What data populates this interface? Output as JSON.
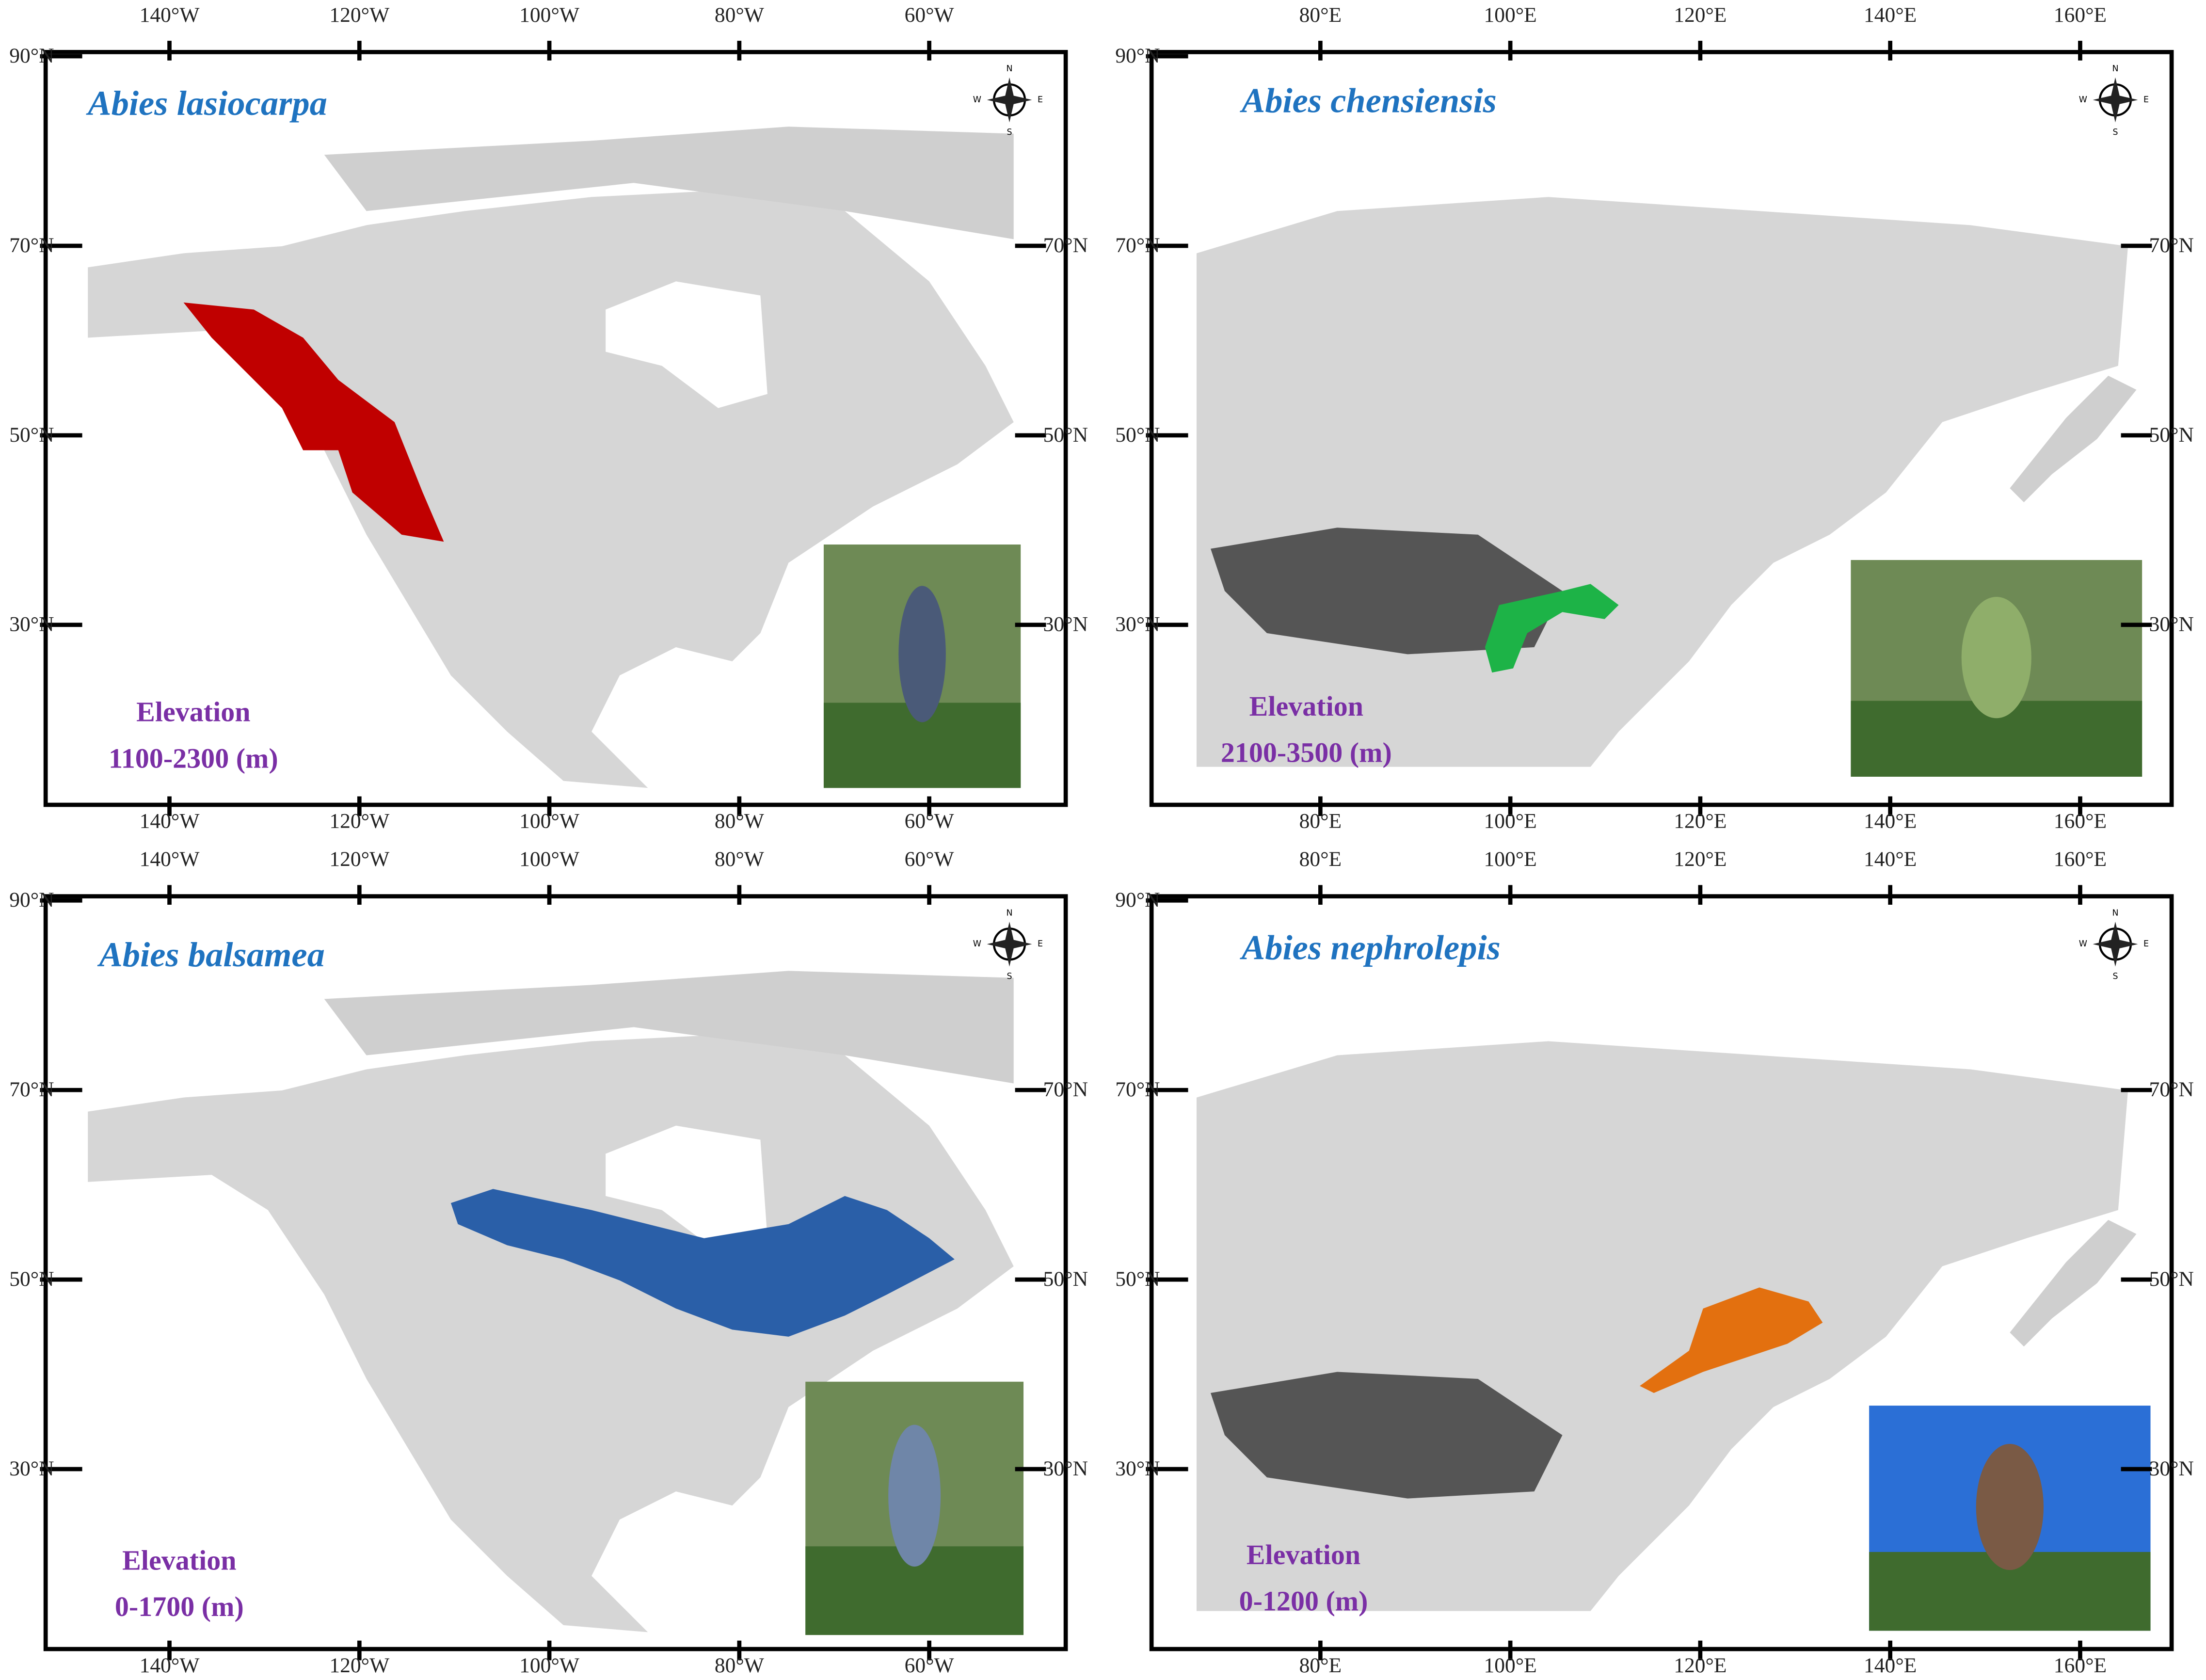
{
  "panels": [
    {
      "title": "Abies lasiocarpa",
      "elevation_label": "Elevation",
      "elevation_range": "1100-2300 (m)",
      "range_color": "#c00000",
      "lon_ticks": [
        "140°W",
        "120°W",
        "100°W",
        "80°W",
        "60°W"
      ],
      "lat_ticks": [
        "90°N",
        "70°N",
        "50°N",
        "30°N"
      ],
      "compass": [
        "N",
        "E",
        "S",
        "W"
      ]
    },
    {
      "title": "Abies chensiensis",
      "elevation_label": "Elevation",
      "elevation_range": "2100-3500 (m)",
      "range_color": "#1db347",
      "lon_ticks": [
        "80°E",
        "100°E",
        "120°E",
        "140°E",
        "160°E"
      ],
      "lat_ticks": [
        "90°N",
        "70°N",
        "50°N",
        "30°N"
      ],
      "compass": [
        "N",
        "E",
        "S",
        "W"
      ]
    },
    {
      "title": "Abies balsamea",
      "elevation_label": "Elevation",
      "elevation_range": "0-1700 (m)",
      "range_color": "#2a5fa8",
      "lon_ticks": [
        "140°W",
        "120°W",
        "100°W",
        "80°W",
        "60°W"
      ],
      "lat_ticks": [
        "90°N",
        "70°N",
        "50°N",
        "30°N"
      ],
      "compass": [
        "N",
        "E",
        "S",
        "W"
      ]
    },
    {
      "title": "Abies nephrolepis",
      "elevation_label": "Elevation",
      "elevation_range": "0-1200 (m)",
      "range_color": "#e3700f",
      "lon_ticks": [
        "80°E",
        "100°E",
        "120°E",
        "140°E",
        "160°E"
      ],
      "lat_ticks": [
        "90°N",
        "70°N",
        "50°N",
        "30°N"
      ],
      "compass": [
        "N",
        "E",
        "S",
        "W"
      ]
    }
  ]
}
